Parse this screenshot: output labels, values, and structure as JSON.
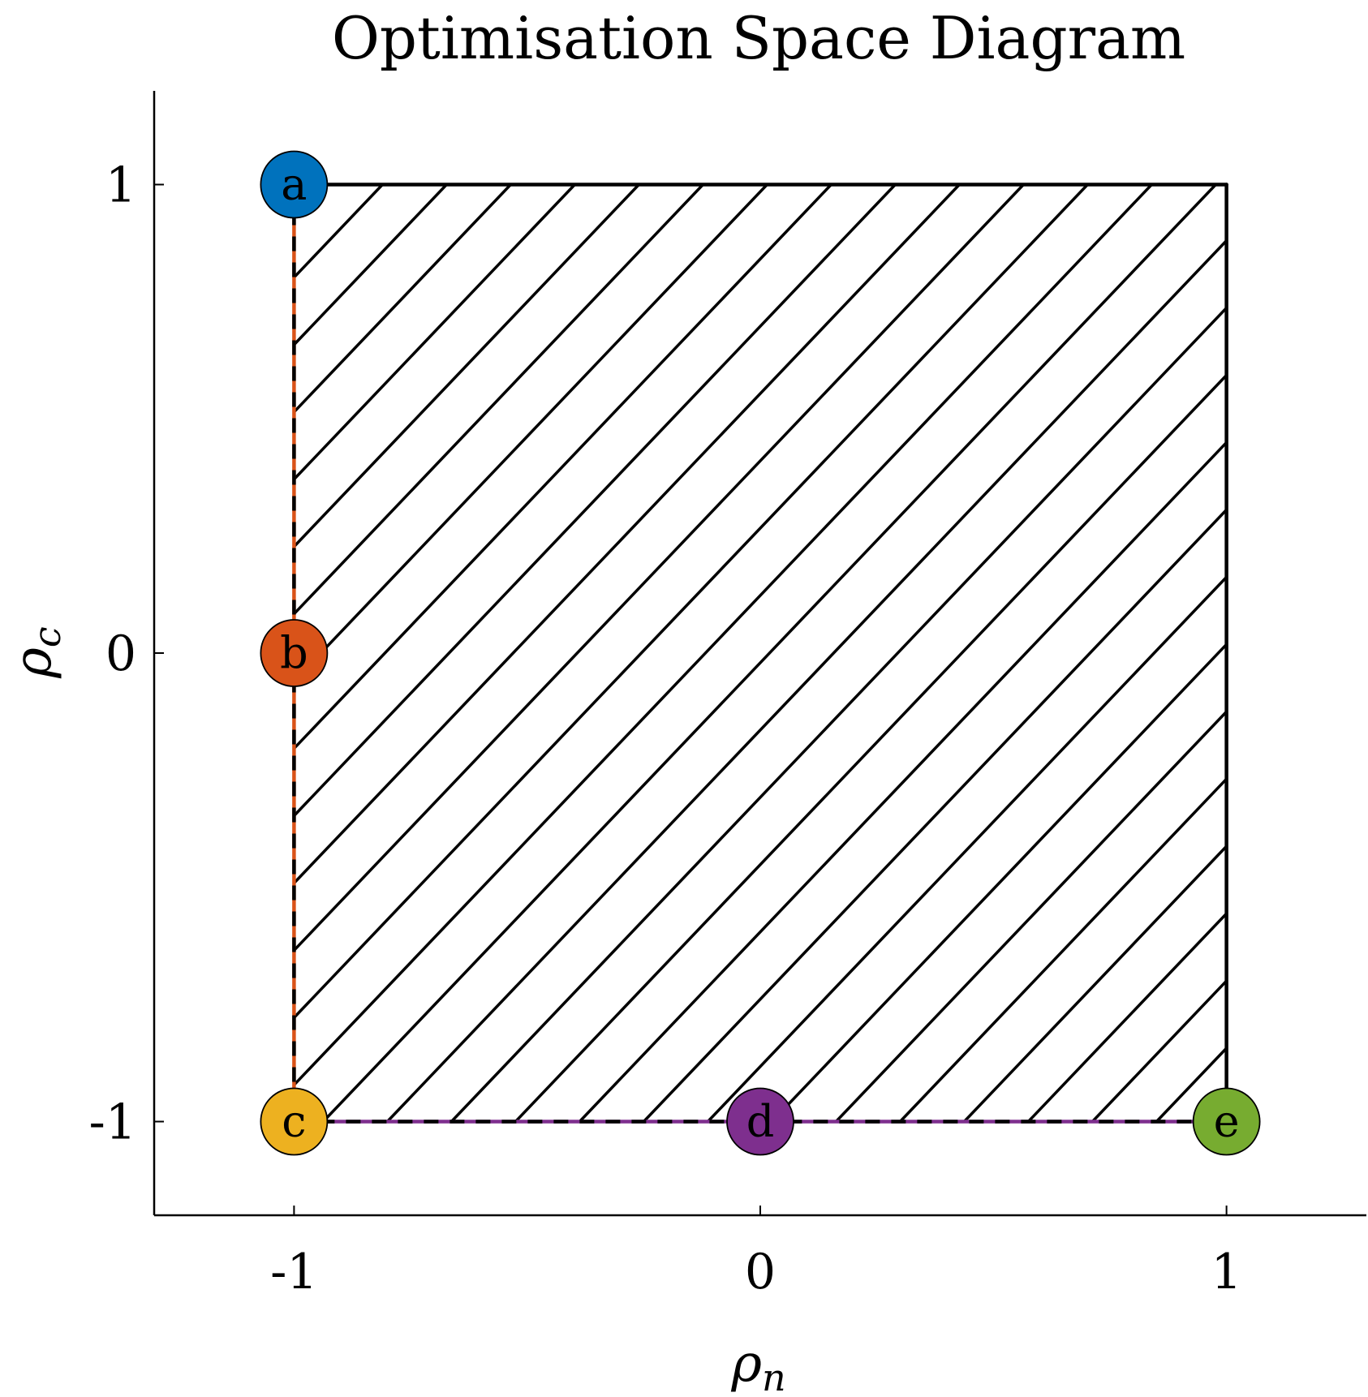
{
  "title": "Optimisation Space Diagram",
  "x_axis": {
    "label_symbol": "ρ",
    "label_subscript": "n",
    "range": [
      -1.3,
      1.3
    ],
    "ticks": [
      {
        "value": -1,
        "label": "-1"
      },
      {
        "value": 0,
        "label": "0"
      },
      {
        "value": 1,
        "label": "1"
      }
    ]
  },
  "y_axis": {
    "label_symbol": "ρ",
    "label_subscript": "c",
    "range": [
      -1.2,
      1.2
    ],
    "ticks": [
      {
        "value": -1,
        "label": "-1"
      },
      {
        "value": 0,
        "label": "0"
      },
      {
        "value": 1,
        "label": "1"
      }
    ]
  },
  "region": {
    "x": [
      -1,
      1
    ],
    "y": [
      -1,
      1
    ],
    "fill": "diagonal hatch"
  },
  "edges": {
    "left": {
      "x": -1,
      "y": [
        -1,
        1
      ],
      "style": "dashed",
      "color": "#D95319"
    },
    "bottom": {
      "y": -1,
      "x": [
        -1,
        1
      ],
      "style": "dashed",
      "color": "#7E2F8E"
    }
  },
  "points": [
    {
      "label": "a",
      "x": -1,
      "y": 1,
      "color": "#0072BD"
    },
    {
      "label": "b",
      "x": -1,
      "y": 0,
      "color": "#D95319"
    },
    {
      "label": "c",
      "x": -1,
      "y": -1,
      "color": "#EDB120"
    },
    {
      "label": "d",
      "x": 0,
      "y": -1,
      "color": "#7E2F8E"
    },
    {
      "label": "e",
      "x": 1,
      "y": -1,
      "color": "#77AC30"
    }
  ]
}
